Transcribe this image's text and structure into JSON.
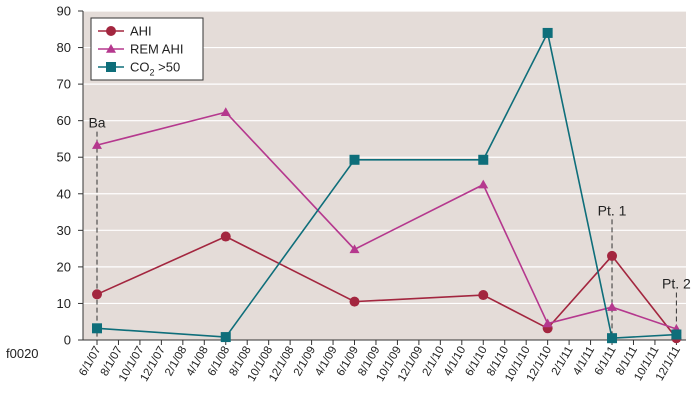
{
  "figure_id": "f0020",
  "colors": {
    "plot_background": "#e4dcd8",
    "grid": "#ffffff",
    "AHI": "#a3263f",
    "REM AHI": "#b5388e",
    "CO2": "#0e6e7a"
  },
  "chart_data": {
    "type": "line",
    "title": "",
    "xlabel": "",
    "ylabel": "",
    "ylim": [
      0,
      90
    ],
    "yticks": [
      0,
      10,
      20,
      30,
      40,
      50,
      60,
      70,
      80,
      90
    ],
    "grid": "horizontal",
    "legend_position": "top-left",
    "categories": [
      "6/1/07",
      "8/1/07",
      "10/1/07",
      "12/1/07",
      "2/1/08",
      "4/1/08",
      "6/1/08",
      "8/1/08",
      "10/1/08",
      "12/1/08",
      "2/1/09",
      "4/1/09",
      "6/1/09",
      "8/1/09",
      "10/1/09",
      "12/1/09",
      "2/1/10",
      "4/1/10",
      "6/1/10",
      "8/1/10",
      "10/1/10",
      "12/1/10",
      "2/1/11",
      "4/1/11",
      "6/1/11",
      "8/1/11",
      "10/1/11",
      "12/1/11"
    ],
    "series": [
      {
        "name": "AHI",
        "marker": "circle",
        "color": "#a3263f",
        "points": [
          [
            "6/1/07",
            12.5
          ],
          [
            "6/1/08",
            28.3
          ],
          [
            "6/1/09",
            10.5
          ],
          [
            "6/1/10",
            12.3
          ],
          [
            "12/1/10",
            3.2
          ],
          [
            "6/1/11",
            23
          ],
          [
            "12/1/11",
            0.5
          ]
        ]
      },
      {
        "name": "REM AHI",
        "marker": "triangle",
        "color": "#b5388e",
        "points": [
          [
            "6/1/07",
            53.3
          ],
          [
            "6/1/08",
            62.3
          ],
          [
            "6/1/09",
            24.8
          ],
          [
            "6/1/10",
            42.5
          ],
          [
            "12/1/10",
            4.5
          ],
          [
            "6/1/11",
            9
          ],
          [
            "12/1/11",
            3
          ]
        ]
      },
      {
        "name": "CO₂ >50",
        "legend_main": "CO",
        "legend_sub": "2",
        "legend_tail": " >50",
        "marker": "square",
        "color": "#0e6e7a",
        "points": [
          [
            "6/1/07",
            3.2
          ],
          [
            "6/1/08",
            0.8
          ],
          [
            "6/1/09",
            49.3
          ],
          [
            "6/1/10",
            49.3
          ],
          [
            "12/1/10",
            84
          ],
          [
            "6/1/11",
            0.5
          ],
          [
            "12/1/11",
            1.5
          ]
        ]
      }
    ],
    "annotations": [
      {
        "text": "Ba",
        "x": "6/1/07",
        "top_value": 57
      },
      {
        "text": "Pt. 1",
        "x": "6/1/11",
        "top_value": 33
      },
      {
        "text": "Pt. 2",
        "x": "12/1/11",
        "top_value": 13
      }
    ]
  }
}
